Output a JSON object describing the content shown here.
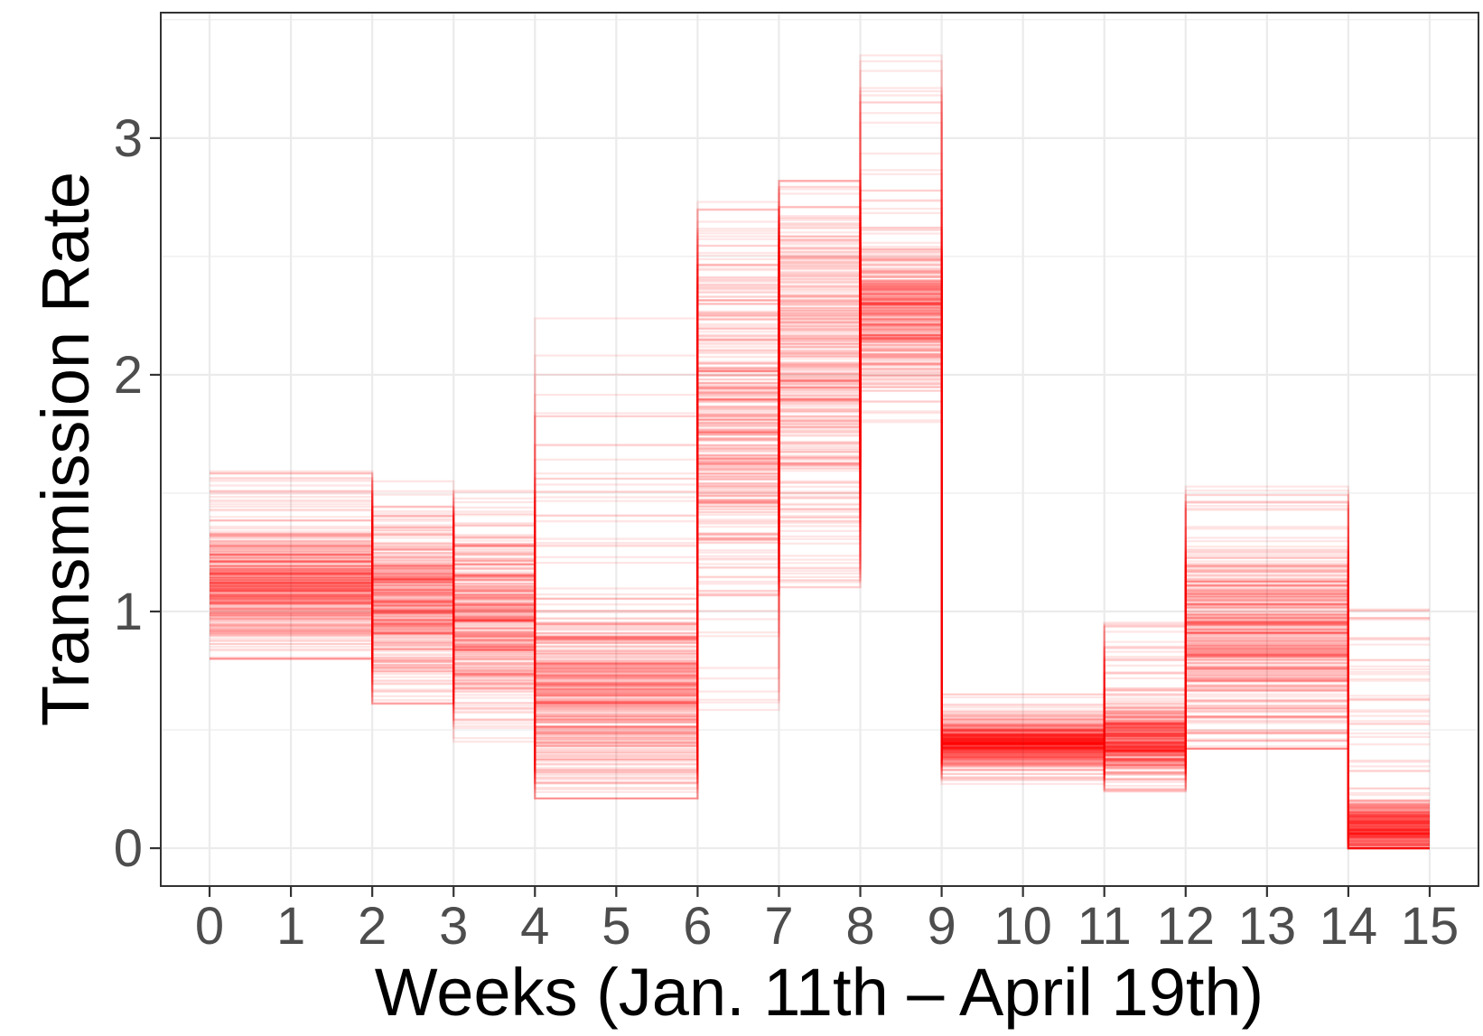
{
  "chart_data": {
    "type": "line",
    "style": "step",
    "xlabel": "Weeks (Jan. 11th – April 19th)",
    "ylabel": "Transmission Rate",
    "xlim": [
      -0.6,
      15.6
    ],
    "ylim": [
      -0.16,
      3.53
    ],
    "x_ticks": [
      "0",
      "1",
      "2",
      "3",
      "4",
      "5",
      "6",
      "7",
      "8",
      "9",
      "10",
      "11",
      "12",
      "13",
      "14",
      "15"
    ],
    "y_ticks": [
      "0",
      "1",
      "2",
      "3"
    ],
    "grid": true,
    "line_color": "#ff0000",
    "weekly_distribution": [
      {
        "week_start": 0,
        "week_end": 2,
        "center": 1.1,
        "dense_spread": 0.13,
        "min": 0.8,
        "max": 1.62
      },
      {
        "week_start": 2,
        "week_end": 3,
        "center": 1.05,
        "dense_spread": 0.16,
        "min": 0.61,
        "max": 1.55
      },
      {
        "week_start": 3,
        "week_end": 4,
        "center": 0.95,
        "dense_spread": 0.18,
        "min": 0.45,
        "max": 1.51
      },
      {
        "week_start": 4,
        "week_end": 6,
        "center": 0.62,
        "dense_spread": 0.2,
        "min": 0.21,
        "max": 2.24
      },
      {
        "week_start": 6,
        "week_end": 7,
        "center": 1.8,
        "dense_spread": 0.4,
        "min": 0.58,
        "max": 2.8
      },
      {
        "week_start": 7,
        "week_end": 8,
        "center": 2.1,
        "dense_spread": 0.35,
        "min": 1.05,
        "max": 2.82
      },
      {
        "week_start": 8,
        "week_end": 9,
        "center": 2.25,
        "dense_spread": 0.15,
        "min": 1.77,
        "max": 3.38
      },
      {
        "week_start": 9,
        "week_end": 11,
        "center": 0.45,
        "dense_spread": 0.05,
        "min": 0.27,
        "max": 0.66
      },
      {
        "week_start": 11,
        "week_end": 12,
        "center": 0.45,
        "dense_spread": 0.08,
        "min": 0.23,
        "max": 0.97
      },
      {
        "week_start": 12,
        "week_end": 14,
        "center": 0.9,
        "dense_spread": 0.2,
        "min": 0.42,
        "max": 1.65
      },
      {
        "week_start": 14,
        "week_end": 15,
        "center": 0.08,
        "dense_spread": 0.06,
        "min": 0.0,
        "max": 1.07
      }
    ]
  }
}
